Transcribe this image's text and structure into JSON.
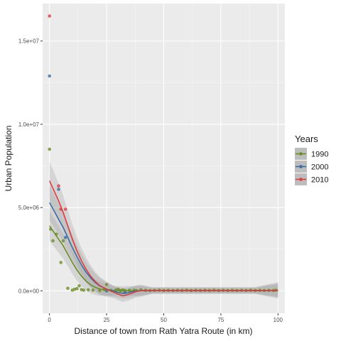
{
  "chart_data": {
    "type": "scatter",
    "xlabel": "Distance of town from Rath Yatra Route (in km)",
    "ylabel": "Urban Population",
    "xlim": [
      -3,
      103
    ],
    "ylim": [
      -1350000,
      17250000
    ],
    "x_ticks": [
      {
        "value": 0,
        "label": "0"
      },
      {
        "value": 25,
        "label": "25"
      },
      {
        "value": 50,
        "label": "50"
      },
      {
        "value": 75,
        "label": "75"
      },
      {
        "value": 100,
        "label": "100"
      }
    ],
    "y_ticks": [
      {
        "value": 0,
        "label": "0.0e+00"
      },
      {
        "value": 5000000,
        "label": "5.0e+06"
      },
      {
        "value": 10000000,
        "label": "1.0e+07"
      },
      {
        "value": 15000000,
        "label": "1.5e+07"
      }
    ],
    "grid": true,
    "legend": {
      "title": "Years",
      "position": "right",
      "entries": [
        "1990",
        "2000",
        "2010"
      ]
    },
    "series": [
      {
        "name": "1990",
        "color": "#6b8e23",
        "points": [
          [
            0,
            8500000
          ],
          [
            0.5,
            3700000
          ],
          [
            1.5,
            3000000
          ],
          [
            3,
            3400000
          ],
          [
            5,
            1700000
          ],
          [
            6,
            3000000
          ],
          [
            8,
            150000
          ],
          [
            10,
            40000
          ],
          [
            11,
            90000
          ],
          [
            12,
            130000
          ],
          [
            13,
            300000
          ],
          [
            14,
            70000
          ],
          [
            15,
            40000
          ],
          [
            17,
            60000
          ],
          [
            19,
            40000
          ],
          [
            22,
            20000
          ],
          [
            24,
            70000
          ],
          [
            25,
            380000
          ],
          [
            27,
            30000
          ],
          [
            29,
            40000
          ],
          [
            30,
            90000
          ],
          [
            31,
            20000
          ],
          [
            32,
            50000
          ],
          [
            33,
            20000
          ],
          [
            35,
            30000
          ],
          [
            37,
            40000
          ],
          [
            38,
            20000
          ],
          [
            40,
            60000
          ],
          [
            42,
            30000
          ],
          [
            44,
            20000
          ],
          [
            46,
            30000
          ],
          [
            48,
            40000
          ],
          [
            50,
            20000
          ],
          [
            52,
            30000
          ],
          [
            54,
            20000
          ],
          [
            56,
            30000
          ],
          [
            58,
            20000
          ],
          [
            60,
            40000
          ],
          [
            62,
            20000
          ],
          [
            64,
            30000
          ],
          [
            66,
            20000
          ],
          [
            68,
            30000
          ],
          [
            70,
            20000
          ],
          [
            72,
            40000
          ],
          [
            74,
            20000
          ],
          [
            76,
            30000
          ],
          [
            78,
            20000
          ],
          [
            80,
            30000
          ],
          [
            82,
            20000
          ],
          [
            84,
            30000
          ],
          [
            86,
            20000
          ],
          [
            88,
            40000
          ],
          [
            90,
            20000
          ],
          [
            92,
            30000
          ],
          [
            94,
            20000
          ],
          [
            96,
            30000
          ],
          [
            98,
            20000
          ],
          [
            99,
            40000
          ]
        ],
        "smooth": [
          [
            0,
            3900000
          ],
          [
            2,
            3500000
          ],
          [
            4,
            3100000
          ],
          [
            6,
            2700000
          ],
          [
            8,
            2200000
          ],
          [
            10,
            1700000
          ],
          [
            12,
            1250000
          ],
          [
            14,
            880000
          ],
          [
            16,
            580000
          ],
          [
            18,
            360000
          ],
          [
            20,
            210000
          ],
          [
            22,
            110000
          ],
          [
            25,
            40000
          ],
          [
            28,
            15000
          ],
          [
            30,
            5000
          ],
          [
            32,
            0
          ],
          [
            35,
            0
          ],
          [
            40,
            5000
          ],
          [
            45,
            10000
          ],
          [
            50,
            15000
          ],
          [
            60,
            15000
          ],
          [
            70,
            15000
          ],
          [
            80,
            15000
          ],
          [
            90,
            15000
          ],
          [
            100,
            20000
          ]
        ]
      },
      {
        "name": "2000",
        "color": "#3a6da4",
        "points": [
          [
            0,
            12900000
          ],
          [
            4,
            6100000
          ],
          [
            7,
            3200000
          ],
          [
            25,
            0
          ],
          [
            33,
            -100000
          ]
        ],
        "smooth": [
          [
            0,
            5300000
          ],
          [
            2,
            4800000
          ],
          [
            4,
            4300000
          ],
          [
            6,
            3800000
          ],
          [
            8,
            3200000
          ],
          [
            10,
            2600000
          ],
          [
            12,
            2050000
          ],
          [
            14,
            1550000
          ],
          [
            16,
            1130000
          ],
          [
            18,
            780000
          ],
          [
            20,
            500000
          ],
          [
            22,
            290000
          ],
          [
            25,
            100000
          ],
          [
            28,
            -20000
          ],
          [
            30,
            -100000
          ],
          [
            32,
            -150000
          ],
          [
            34,
            -130000
          ],
          [
            36,
            -60000
          ],
          [
            38,
            -10000
          ],
          [
            40,
            10000
          ],
          [
            45,
            15000
          ],
          [
            50,
            15000
          ],
          [
            60,
            15000
          ],
          [
            70,
            15000
          ],
          [
            80,
            15000
          ],
          [
            90,
            15000
          ],
          [
            100,
            25000
          ]
        ]
      },
      {
        "name": "2010",
        "color": "#e03c3c",
        "points": [
          [
            0,
            16500000
          ],
          [
            4,
            6300000
          ],
          [
            5,
            4900000
          ],
          [
            7,
            4900000
          ]
        ],
        "smooth": [
          [
            0,
            6600000
          ],
          [
            2,
            6000000
          ],
          [
            4,
            5400000
          ],
          [
            6,
            4700000
          ],
          [
            8,
            3900000
          ],
          [
            10,
            3100000
          ],
          [
            12,
            2400000
          ],
          [
            14,
            1800000
          ],
          [
            16,
            1300000
          ],
          [
            18,
            880000
          ],
          [
            20,
            560000
          ],
          [
            22,
            310000
          ],
          [
            25,
            100000
          ],
          [
            28,
            -80000
          ],
          [
            30,
            -200000
          ],
          [
            32,
            -300000
          ],
          [
            34,
            -250000
          ],
          [
            36,
            -150000
          ],
          [
            38,
            -40000
          ],
          [
            40,
            10000
          ],
          [
            45,
            20000
          ],
          [
            50,
            20000
          ],
          [
            60,
            20000
          ],
          [
            70,
            20000
          ],
          [
            80,
            20000
          ],
          [
            90,
            20000
          ],
          [
            100,
            30000
          ]
        ]
      }
    ]
  }
}
